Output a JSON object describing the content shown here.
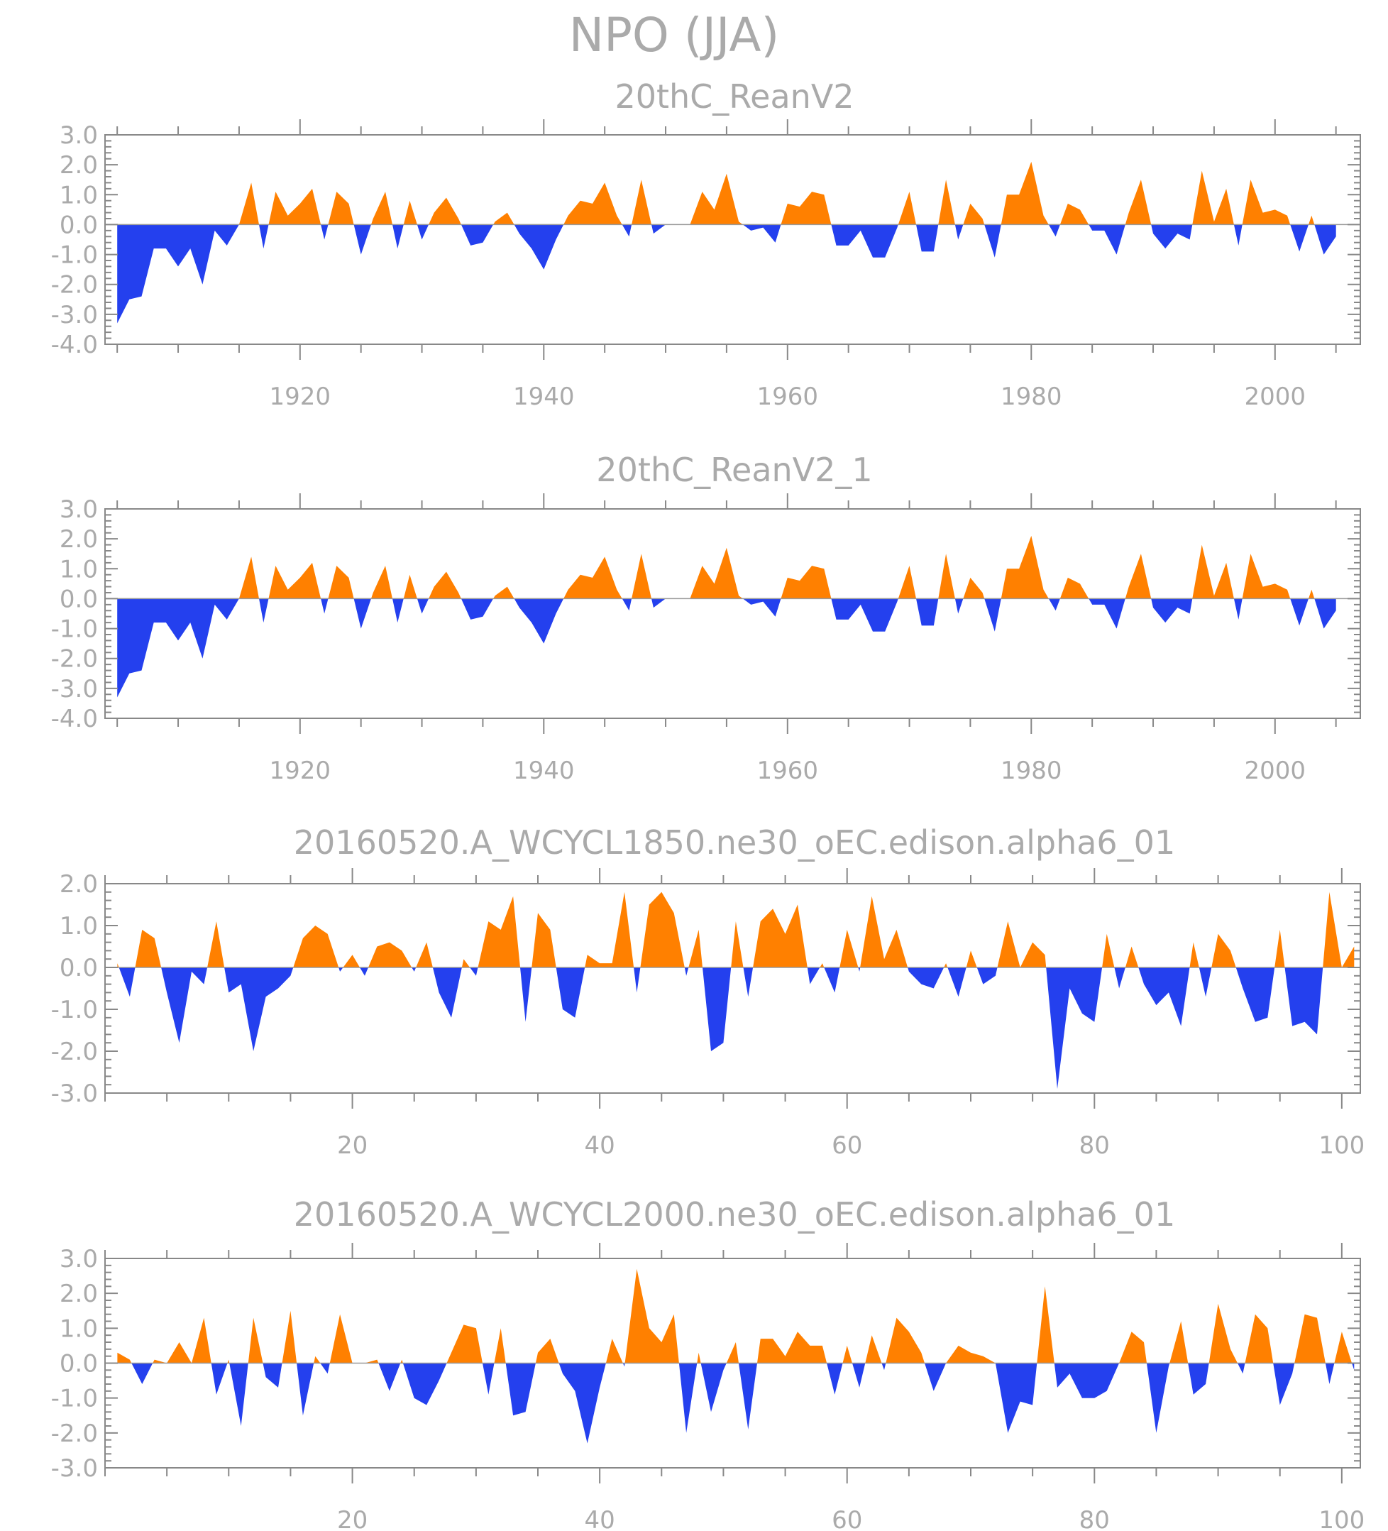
{
  "figure_title": "NPO (JJA)",
  "colors": {
    "positive": "#ff8000",
    "negative": "#2440ee",
    "axis": "#888888",
    "text": "#aaaaaa"
  },
  "chart_data": [
    {
      "type": "area",
      "title": "20thC_ReanV2",
      "x_start": 1905,
      "xlim": [
        1904,
        2007
      ],
      "xticks": [
        1920,
        1940,
        1960,
        1980,
        2000
      ],
      "xtick_labels": [
        "1920",
        "1940",
        "1960",
        "1980",
        "2000"
      ],
      "ylim": [
        -4,
        3
      ],
      "yticks": [
        3,
        2,
        1,
        0,
        -1,
        -2,
        -3,
        -4
      ],
      "ytick_labels": [
        "3.0",
        "2.0",
        "1.0",
        "0.0",
        "-1.0",
        "-2.0",
        "-3.0",
        "-4.0"
      ],
      "values": [
        -3.3,
        -2.5,
        -2.4,
        -0.8,
        -0.8,
        -1.4,
        -0.8,
        -2.0,
        -0.2,
        -0.7,
        0.0,
        1.4,
        -0.8,
        1.1,
        0.3,
        0.7,
        1.2,
        -0.5,
        1.1,
        0.7,
        -1.0,
        0.2,
        1.1,
        -0.8,
        0.8,
        -0.5,
        0.4,
        0.9,
        0.2,
        -0.7,
        -0.6,
        0.1,
        0.4,
        -0.3,
        -0.8,
        -1.5,
        -0.5,
        0.3,
        0.8,
        0.7,
        1.4,
        0.3,
        -0.4,
        1.5,
        -0.3,
        0.0,
        0.0,
        0.0,
        1.1,
        0.5,
        1.7,
        0.1,
        -0.2,
        -0.1,
        -0.6,
        0.7,
        0.6,
        1.1,
        1.0,
        -0.7,
        -0.7,
        -0.2,
        -1.1,
        -1.1,
        -0.1,
        1.1,
        -0.9,
        -0.9,
        1.5,
        -0.5,
        0.7,
        0.2,
        -1.1,
        1.0,
        1.0,
        2.1,
        0.3,
        -0.4,
        0.7,
        0.5,
        -0.2,
        -0.2,
        -1.0,
        0.4,
        1.5,
        -0.3,
        -0.8,
        -0.3,
        -0.5,
        1.8,
        0.1,
        1.2,
        -0.7,
        1.5,
        0.4,
        0.5,
        0.3,
        -0.9,
        0.3,
        -1.0,
        -0.4
      ]
    },
    {
      "type": "area",
      "title": "20thC_ReanV2_1",
      "x_start": 1905,
      "xlim": [
        1904,
        2007
      ],
      "xticks": [
        1920,
        1940,
        1960,
        1980,
        2000
      ],
      "xtick_labels": [
        "1920",
        "1940",
        "1960",
        "1980",
        "2000"
      ],
      "ylim": [
        -4,
        3
      ],
      "yticks": [
        3,
        2,
        1,
        0,
        -1,
        -2,
        -3,
        -4
      ],
      "ytick_labels": [
        "3.0",
        "2.0",
        "1.0",
        "0.0",
        "-1.0",
        "-2.0",
        "-3.0",
        "-4.0"
      ],
      "values": [
        -3.3,
        -2.5,
        -2.4,
        -0.8,
        -0.8,
        -1.4,
        -0.8,
        -2.0,
        -0.2,
        -0.7,
        0.0,
        1.4,
        -0.8,
        1.1,
        0.3,
        0.7,
        1.2,
        -0.5,
        1.1,
        0.7,
        -1.0,
        0.2,
        1.1,
        -0.8,
        0.8,
        -0.5,
        0.4,
        0.9,
        0.2,
        -0.7,
        -0.6,
        0.1,
        0.4,
        -0.3,
        -0.8,
        -1.5,
        -0.5,
        0.3,
        0.8,
        0.7,
        1.4,
        0.3,
        -0.4,
        1.5,
        -0.3,
        0.0,
        0.0,
        0.0,
        1.1,
        0.5,
        1.7,
        0.1,
        -0.2,
        -0.1,
        -0.6,
        0.7,
        0.6,
        1.1,
        1.0,
        -0.7,
        -0.7,
        -0.2,
        -1.1,
        -1.1,
        -0.1,
        1.1,
        -0.9,
        -0.9,
        1.5,
        -0.5,
        0.7,
        0.2,
        -1.1,
        1.0,
        1.0,
        2.1,
        0.3,
        -0.4,
        0.7,
        0.5,
        -0.2,
        -0.2,
        -1.0,
        0.4,
        1.5,
        -0.3,
        -0.8,
        -0.3,
        -0.5,
        1.8,
        0.1,
        1.2,
        -0.7,
        1.5,
        0.4,
        0.5,
        0.3,
        -0.9,
        0.3,
        -1.0,
        -0.4
      ]
    },
    {
      "type": "area",
      "title": "20160520.A_WCYCL1850.ne30_oEC.edison.alpha6_01",
      "x_start": 1,
      "xlim": [
        0,
        101.5
      ],
      "xticks": [
        20,
        40,
        60,
        80,
        100
      ],
      "xtick_labels": [
        "20",
        "40",
        "60",
        "80",
        "100"
      ],
      "ylim": [
        -3,
        2
      ],
      "yticks": [
        2,
        1,
        0,
        -1,
        -2,
        -3
      ],
      "ytick_labels": [
        "2.0",
        "1.0",
        "0.0",
        "-1.0",
        "-2.0",
        "-3.0"
      ],
      "values": [
        0.1,
        -0.7,
        0.9,
        0.7,
        -0.6,
        -1.8,
        -0.1,
        -0.4,
        1.1,
        -0.6,
        -0.4,
        -2.0,
        -0.7,
        -0.5,
        -0.2,
        0.7,
        1.0,
        0.8,
        -0.1,
        0.3,
        -0.2,
        0.5,
        0.6,
        0.4,
        -0.1,
        0.6,
        -0.6,
        -1.2,
        0.2,
        -0.2,
        1.1,
        0.9,
        1.7,
        -1.3,
        1.3,
        0.9,
        -1.0,
        -1.2,
        0.3,
        0.1,
        0.1,
        1.8,
        -0.6,
        1.5,
        1.8,
        1.3,
        -0.2,
        0.9,
        -2.0,
        -1.8,
        1.1,
        -0.7,
        1.1,
        1.4,
        0.8,
        1.5,
        -0.4,
        0.1,
        -0.6,
        0.9,
        -0.1,
        1.7,
        0.2,
        0.9,
        -0.1,
        -0.4,
        -0.5,
        0.1,
        -0.7,
        0.4,
        -0.4,
        -0.2,
        1.1,
        0.0,
        0.6,
        0.3,
        -2.9,
        -0.5,
        -1.1,
        -1.3,
        0.8,
        -0.5,
        0.5,
        -0.4,
        -0.9,
        -0.6,
        -1.4,
        0.6,
        -0.7,
        0.8,
        0.4,
        -0.5,
        -1.3,
        -1.2,
        0.9,
        -1.4,
        -1.3,
        -1.6,
        1.8,
        0.0,
        0.5
      ]
    },
    {
      "type": "area",
      "title": "20160520.A_WCYCL2000.ne30_oEC.edison.alpha6_01",
      "x_start": 1,
      "xlim": [
        0,
        101.5
      ],
      "xticks": [
        20,
        40,
        60,
        80,
        100
      ],
      "xtick_labels": [
        "20",
        "40",
        "60",
        "80",
        "100"
      ],
      "ylim": [
        -3,
        3
      ],
      "yticks": [
        3,
        2,
        1,
        0,
        -1,
        -2,
        -3
      ],
      "ytick_labels": [
        "3.0",
        "2.0",
        "1.0",
        "0.0",
        "-1.0",
        "-2.0",
        "-3.0"
      ],
      "values": [
        0.3,
        0.1,
        -0.6,
        0.1,
        0.0,
        0.6,
        0.0,
        1.3,
        -0.9,
        0.1,
        -1.8,
        1.3,
        -0.4,
        -0.7,
        1.5,
        -1.5,
        0.2,
        -0.3,
        1.4,
        0.0,
        0.0,
        0.1,
        -0.8,
        0.1,
        -1.0,
        -1.2,
        -0.5,
        0.3,
        1.1,
        1.0,
        -0.9,
        1.0,
        -1.5,
        -1.4,
        0.3,
        0.7,
        -0.3,
        -0.8,
        -2.3,
        -0.7,
        0.7,
        -0.1,
        2.7,
        1.0,
        0.6,
        1.4,
        -2.0,
        0.3,
        -1.4,
        -0.2,
        0.6,
        -1.9,
        0.7,
        0.7,
        0.2,
        0.9,
        0.5,
        0.5,
        -0.9,
        0.5,
        -0.7,
        0.8,
        -0.2,
        1.3,
        0.9,
        0.3,
        -0.8,
        0.0,
        0.5,
        0.3,
        0.2,
        0.0,
        -2.0,
        -1.1,
        -1.2,
        2.2,
        -0.7,
        -0.3,
        -1.0,
        -1.0,
        -0.8,
        0.0,
        0.9,
        0.6,
        -2.0,
        -0.1,
        1.2,
        -0.9,
        -0.6,
        1.7,
        0.4,
        -0.3,
        1.4,
        1.0,
        -1.2,
        -0.3,
        1.4,
        1.3,
        -0.6,
        0.9,
        -0.2
      ]
    }
  ]
}
